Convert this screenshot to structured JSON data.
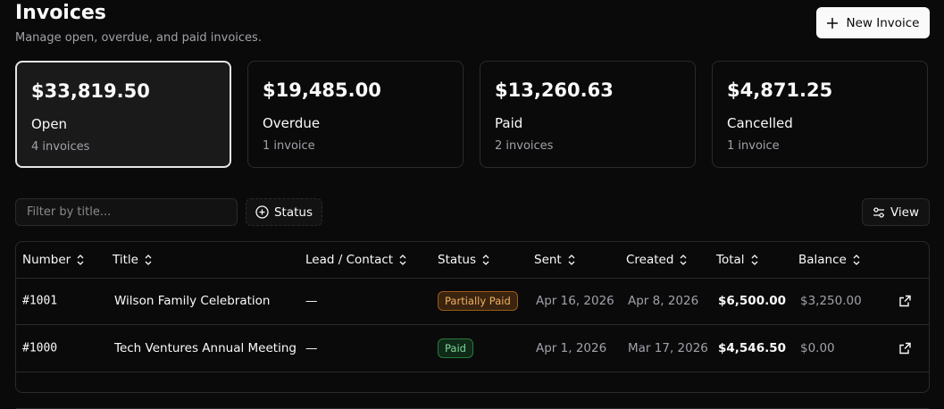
{
  "header": {
    "title": "Invoices",
    "subtitle": "Manage open, overdue, and paid invoices.",
    "new_button": "New Invoice"
  },
  "cards": [
    {
      "amount": "$33,819.50",
      "label": "Open",
      "count": "4 invoices"
    },
    {
      "amount": "$19,485.00",
      "label": "Overdue",
      "count": "1 invoice"
    },
    {
      "amount": "$13,260.63",
      "label": "Paid",
      "count": "2 invoices"
    },
    {
      "amount": "$4,871.25",
      "label": "Cancelled",
      "count": "1 invoice"
    }
  ],
  "toolbar": {
    "filter_placeholder": "Filter by title...",
    "status_button": "Status",
    "view_button": "View"
  },
  "table": {
    "columns": [
      "Number",
      "Title",
      "Lead / Contact",
      "Status",
      "Sent",
      "Created",
      "Total",
      "Balance"
    ],
    "rows": [
      [
        "#1001",
        "Wilson Family Celebration",
        "—",
        "Partially Paid",
        "Apr 16, 2026",
        "Apr 8, 2026",
        "$6,500.00",
        "$3,250.00"
      ],
      [
        "#1000",
        "Tech Ventures Annual Meeting",
        "—",
        "Paid",
        "Apr 1, 2026",
        "Mar 17, 2026",
        "$4,546.50",
        "$0.00"
      ]
    ]
  }
}
